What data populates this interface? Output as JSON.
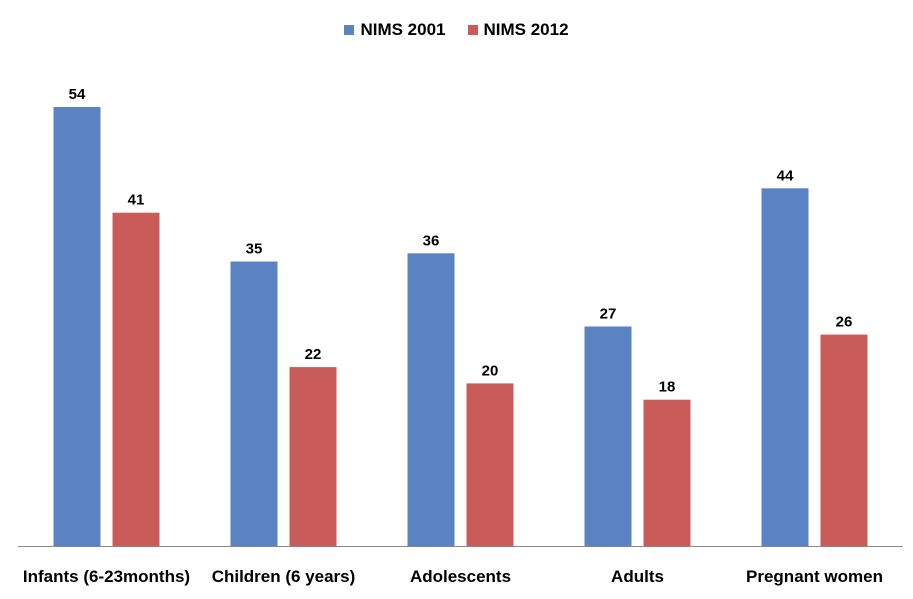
{
  "chart_data": {
    "type": "bar",
    "title": "",
    "xlabel": "",
    "ylabel": "",
    "ylim": [
      0,
      54
    ],
    "grid": false,
    "legend_position": "top-center",
    "categories": [
      "Infants (6-23months)",
      "Children (6 years)",
      "Adolescents",
      "Adults",
      "Pregnant women"
    ],
    "series": [
      {
        "name": "NIMS 2001",
        "color": "#5B82C3",
        "values": [
          54,
          35,
          36,
          27,
          44
        ]
      },
      {
        "name": "NIMS 2012",
        "color": "#C95C58",
        "values": [
          41,
          22,
          20,
          18,
          26
        ]
      }
    ]
  }
}
